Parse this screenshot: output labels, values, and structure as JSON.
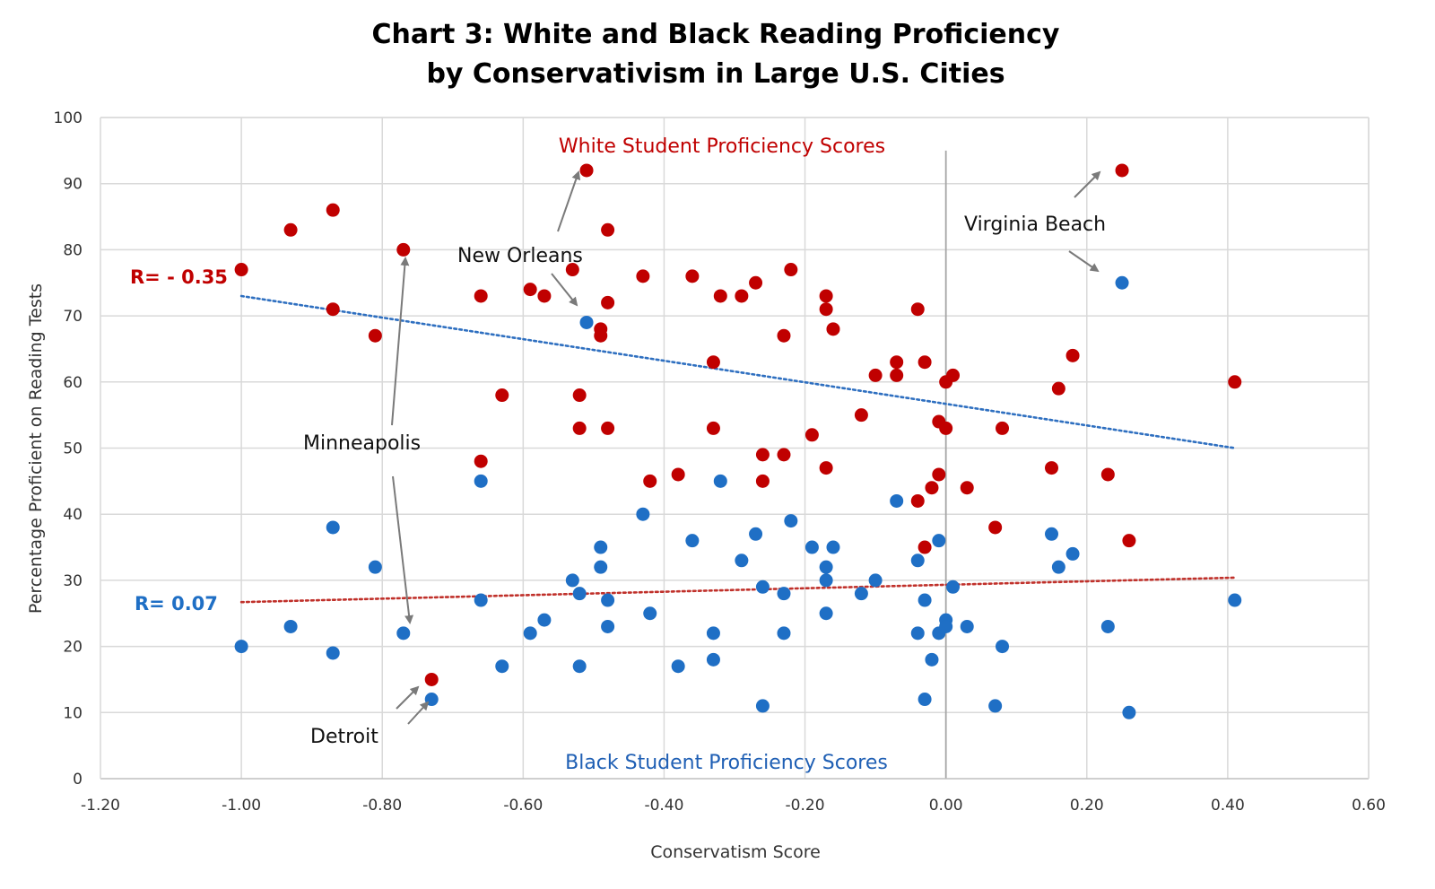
{
  "chart_data": {
    "type": "scatter",
    "title_line1": "Chart 3: White and Black Reading Proficiency",
    "title_line2": "by Conservativism in Large U.S. Cities",
    "xlabel": "Conservatism Score",
    "ylabel": "Percentage Proficient on Reading Tests",
    "xlim": [
      -1.2,
      0.6
    ],
    "ylim": [
      0,
      100
    ],
    "x_ticks": [
      "-1.20",
      "-1.00",
      "-0.80",
      "-0.60",
      "-0.40",
      "-0.20",
      "0.00",
      "0.20",
      "0.40",
      "0.60"
    ],
    "y_ticks": [
      "0",
      "10",
      "20",
      "30",
      "40",
      "50",
      "60",
      "70",
      "80",
      "90",
      "100"
    ],
    "grid": true,
    "series": [
      {
        "name": "White Student Proficiency Scores",
        "color": "#c00000",
        "points": [
          [
            -1.0,
            77
          ],
          [
            -0.93,
            83
          ],
          [
            -0.87,
            86
          ],
          [
            -0.87,
            71
          ],
          [
            -0.81,
            67
          ],
          [
            -0.77,
            80
          ],
          [
            -0.73,
            15
          ],
          [
            -0.66,
            73
          ],
          [
            -0.66,
            48
          ],
          [
            -0.63,
            58
          ],
          [
            -0.59,
            74
          ],
          [
            -0.57,
            73
          ],
          [
            -0.53,
            77
          ],
          [
            -0.52,
            58
          ],
          [
            -0.52,
            53
          ],
          [
            -0.51,
            92
          ],
          [
            -0.49,
            68
          ],
          [
            -0.49,
            67
          ],
          [
            -0.48,
            83
          ],
          [
            -0.48,
            72
          ],
          [
            -0.48,
            53
          ],
          [
            -0.43,
            76
          ],
          [
            -0.42,
            45
          ],
          [
            -0.38,
            46
          ],
          [
            -0.36,
            76
          ],
          [
            -0.33,
            63
          ],
          [
            -0.33,
            53
          ],
          [
            -0.32,
            73
          ],
          [
            -0.29,
            73
          ],
          [
            -0.27,
            75
          ],
          [
            -0.26,
            49
          ],
          [
            -0.26,
            45
          ],
          [
            -0.23,
            67
          ],
          [
            -0.23,
            49
          ],
          [
            -0.22,
            77
          ],
          [
            -0.19,
            52
          ],
          [
            -0.17,
            73
          ],
          [
            -0.17,
            71
          ],
          [
            -0.17,
            47
          ],
          [
            -0.16,
            68
          ],
          [
            -0.12,
            55
          ],
          [
            -0.1,
            61
          ],
          [
            -0.07,
            63
          ],
          [
            -0.07,
            61
          ],
          [
            -0.04,
            71
          ],
          [
            -0.04,
            42
          ],
          [
            -0.03,
            63
          ],
          [
            -0.03,
            35
          ],
          [
            -0.02,
            44
          ],
          [
            -0.01,
            54
          ],
          [
            -0.01,
            46
          ],
          [
            0.0,
            60
          ],
          [
            0.0,
            53
          ],
          [
            0.01,
            61
          ],
          [
            0.03,
            44
          ],
          [
            0.07,
            38
          ],
          [
            0.08,
            53
          ],
          [
            0.15,
            47
          ],
          [
            0.16,
            59
          ],
          [
            0.18,
            64
          ],
          [
            0.23,
            46
          ],
          [
            0.25,
            92
          ],
          [
            0.26,
            36
          ],
          [
            0.41,
            60
          ]
        ]
      },
      {
        "name": "Black Student Proficiency Scores",
        "color": "#1f6fc5",
        "points": [
          [
            -1.0,
            20
          ],
          [
            -0.93,
            23
          ],
          [
            -0.87,
            38
          ],
          [
            -0.87,
            19
          ],
          [
            -0.81,
            32
          ],
          [
            -0.77,
            22
          ],
          [
            -0.73,
            12
          ],
          [
            -0.66,
            45
          ],
          [
            -0.66,
            27
          ],
          [
            -0.63,
            17
          ],
          [
            -0.59,
            22
          ],
          [
            -0.57,
            24
          ],
          [
            -0.53,
            30
          ],
          [
            -0.52,
            28
          ],
          [
            -0.52,
            17
          ],
          [
            -0.51,
            69
          ],
          [
            -0.49,
            35
          ],
          [
            -0.49,
            32
          ],
          [
            -0.48,
            27
          ],
          [
            -0.48,
            23
          ],
          [
            -0.43,
            40
          ],
          [
            -0.42,
            25
          ],
          [
            -0.38,
            17
          ],
          [
            -0.36,
            36
          ],
          [
            -0.33,
            22
          ],
          [
            -0.33,
            18
          ],
          [
            -0.32,
            45
          ],
          [
            -0.29,
            33
          ],
          [
            -0.27,
            37
          ],
          [
            -0.26,
            29
          ],
          [
            -0.26,
            11
          ],
          [
            -0.23,
            28
          ],
          [
            -0.23,
            22
          ],
          [
            -0.22,
            39
          ],
          [
            -0.19,
            35
          ],
          [
            -0.17,
            32
          ],
          [
            -0.17,
            30
          ],
          [
            -0.17,
            25
          ],
          [
            -0.16,
            35
          ],
          [
            -0.12,
            28
          ],
          [
            -0.1,
            30
          ],
          [
            -0.07,
            42
          ],
          [
            -0.04,
            33
          ],
          [
            -0.04,
            22
          ],
          [
            -0.03,
            27
          ],
          [
            -0.03,
            12
          ],
          [
            -0.02,
            18
          ],
          [
            -0.01,
            36
          ],
          [
            -0.01,
            22
          ],
          [
            0.0,
            24
          ],
          [
            0.0,
            23
          ],
          [
            0.01,
            29
          ],
          [
            0.03,
            23
          ],
          [
            0.07,
            11
          ],
          [
            0.08,
            20
          ],
          [
            0.15,
            37
          ],
          [
            0.16,
            32
          ],
          [
            0.18,
            34
          ],
          [
            0.23,
            23
          ],
          [
            0.25,
            75
          ],
          [
            0.26,
            10
          ],
          [
            0.41,
            27
          ]
        ]
      }
    ],
    "trendlines": [
      {
        "color": "#2e6fc0",
        "from": [
          -1.0,
          73
        ],
        "to": [
          0.41,
          50
        ],
        "style": "dotted"
      },
      {
        "color": "#c0302a",
        "from": [
          -1.0,
          26.7
        ],
        "to": [
          0.41,
          30.4
        ],
        "style": "dotted"
      }
    ],
    "annotations": {
      "white_series_label": "White Student Proficiency Scores",
      "black_series_label": "Black Student Proficiency Scores",
      "r_white": "R= - 0.35",
      "r_black": "R= 0.07",
      "city_new_orleans": "New Orleans",
      "city_virginia_beach": "Virginia Beach",
      "city_minneapolis": "Minneapolis",
      "city_detroit": "Detroit"
    }
  }
}
